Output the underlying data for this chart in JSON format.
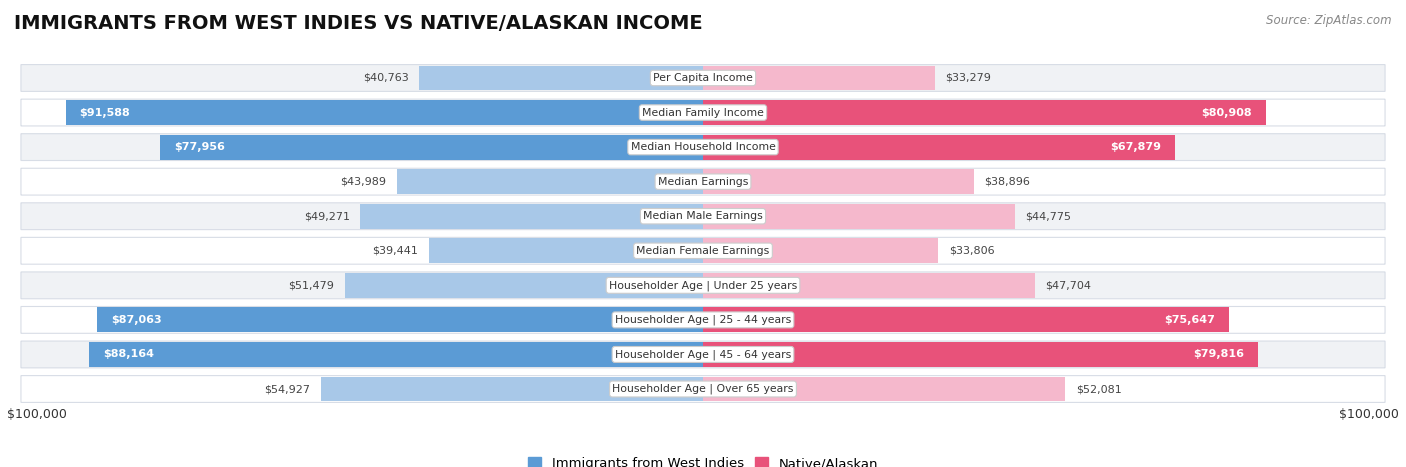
{
  "title": "IMMIGRANTS FROM WEST INDIES VS NATIVE/ALASKAN INCOME",
  "source": "Source: ZipAtlas.com",
  "categories": [
    "Per Capita Income",
    "Median Family Income",
    "Median Household Income",
    "Median Earnings",
    "Median Male Earnings",
    "Median Female Earnings",
    "Householder Age | Under 25 years",
    "Householder Age | 25 - 44 years",
    "Householder Age | 45 - 64 years",
    "Householder Age | Over 65 years"
  ],
  "west_indies_values": [
    40763,
    91588,
    77956,
    43989,
    49271,
    39441,
    51479,
    87063,
    88164,
    54927
  ],
  "native_values": [
    33279,
    80908,
    67879,
    38896,
    44775,
    33806,
    47704,
    75647,
    79816,
    52081
  ],
  "west_indies_labels": [
    "$40,763",
    "$91,588",
    "$77,956",
    "$43,989",
    "$49,271",
    "$39,441",
    "$51,479",
    "$87,063",
    "$88,164",
    "$54,927"
  ],
  "native_labels": [
    "$33,279",
    "$80,908",
    "$67,879",
    "$38,896",
    "$44,775",
    "$33,806",
    "$47,704",
    "$75,647",
    "$79,816",
    "$52,081"
  ],
  "west_indies_color_light": "#a8c8e8",
  "west_indies_color_dark": "#5b9bd5",
  "native_color_light": "#f5b8cc",
  "native_color_dark": "#e8527a",
  "max_value": 100000,
  "background_color": "#ffffff",
  "label_fontsize": 8.0,
  "title_fontsize": 14,
  "legend_label_west": "Immigrants from West Indies",
  "legend_label_native": "Native/Alaskan",
  "threshold_dark_label_west": 70000,
  "threshold_dark_label_native": 65000
}
